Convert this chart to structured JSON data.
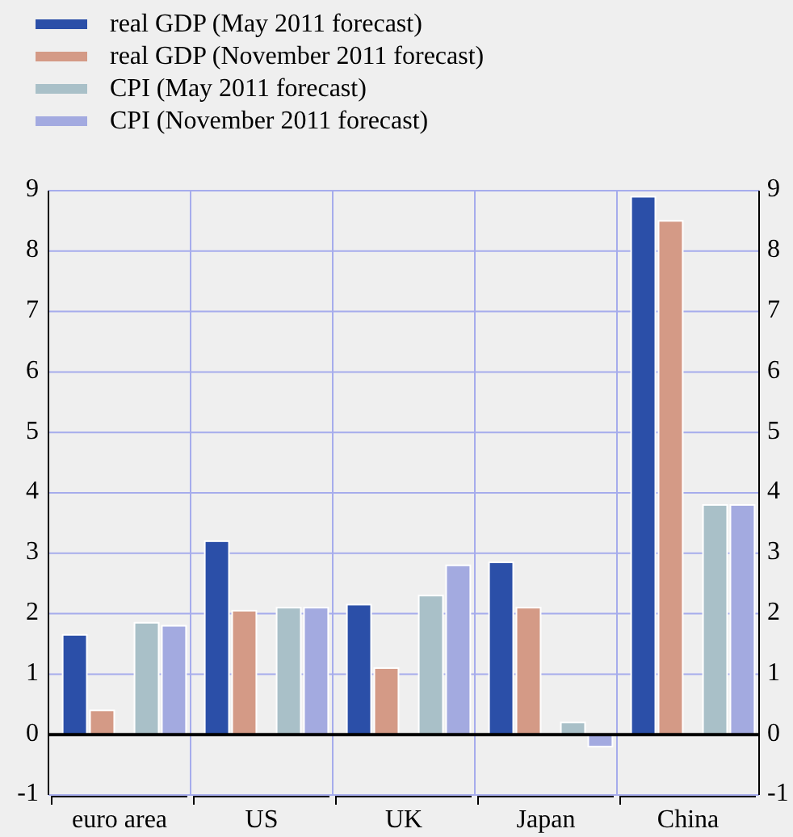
{
  "chart_data": {
    "type": "bar",
    "categories": [
      "euro area",
      "US",
      "UK",
      "Japan",
      "China"
    ],
    "series": [
      {
        "name": "real GDP (May 2011 forecast)",
        "color": "#2b4fa8",
        "values": [
          1.65,
          3.2,
          2.15,
          2.85,
          8.9
        ]
      },
      {
        "name": "real GDP (November 2011 forecast)",
        "color": "#d49a86",
        "values": [
          0.4,
          2.05,
          1.1,
          2.1,
          8.5
        ]
      },
      {
        "name": "CPI (May 2011 forecast)",
        "color": "#a9c0c8",
        "values": [
          1.85,
          2.1,
          2.3,
          0.2,
          3.8
        ]
      },
      {
        "name": "CPI (November 2011 forecast)",
        "color": "#a3aae0",
        "values": [
          1.8,
          2.1,
          2.8,
          -0.2,
          3.8
        ]
      }
    ],
    "ylim": [
      -1,
      9
    ],
    "yticks": [
      -1,
      0,
      1,
      2,
      3,
      4,
      5,
      6,
      7,
      8,
      9
    ],
    "y2lim": [
      -1,
      9
    ],
    "y2ticks": [
      -1,
      0,
      1,
      2,
      3,
      4,
      5,
      6,
      7,
      8,
      9
    ],
    "grid": true,
    "legend": "top left"
  }
}
